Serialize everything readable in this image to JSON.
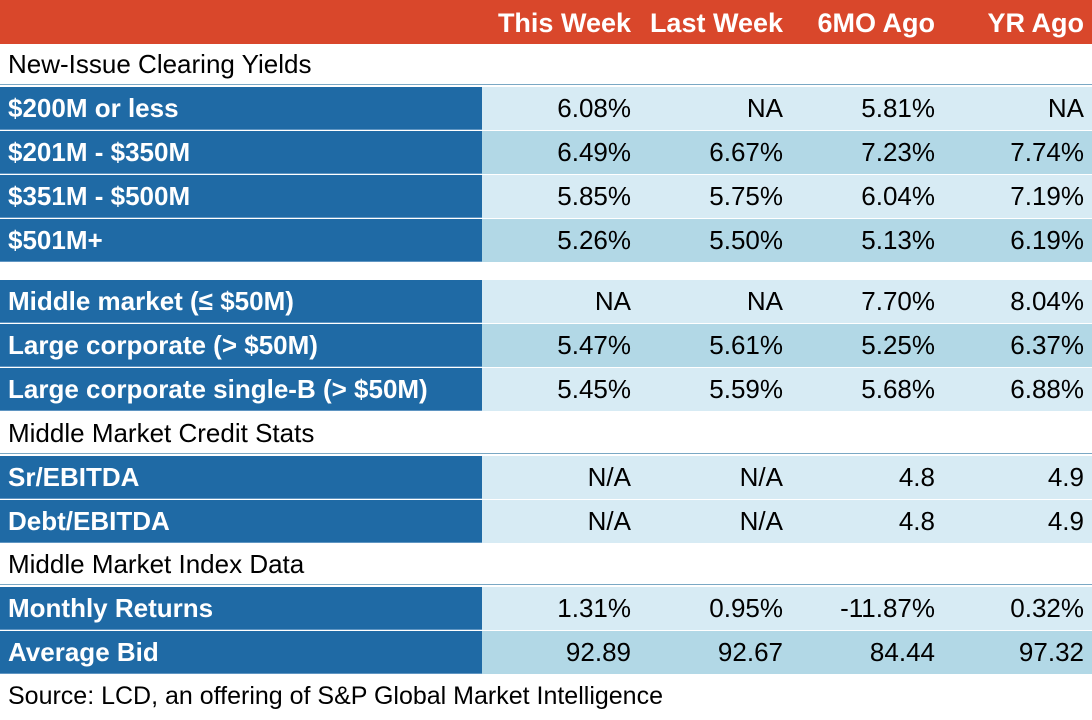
{
  "header": {
    "columns": [
      "This Week",
      "Last Week",
      "6MO Ago",
      "YR Ago"
    ]
  },
  "sections": [
    {
      "title": "New-Issue Clearing Yields",
      "rows": [
        {
          "label": "$200M or less",
          "values": [
            "6.08%",
            "NA",
            "5.81%",
            "NA"
          ]
        },
        {
          "label": "$201M - $350M",
          "values": [
            "6.49%",
            "6.67%",
            "7.23%",
            "7.74%"
          ]
        },
        {
          "label": "$351M - $500M",
          "values": [
            "5.85%",
            "5.75%",
            "6.04%",
            "7.19%"
          ]
        },
        {
          "label": "$501M+",
          "values": [
            "5.26%",
            "5.50%",
            "5.13%",
            "6.19%"
          ]
        }
      ]
    },
    {
      "title": "",
      "rows": [
        {
          "label": "Middle market (≤ $50M)",
          "values": [
            "NA",
            "NA",
            "7.70%",
            "8.04%"
          ]
        },
        {
          "label": "Large corporate (> $50M)",
          "values": [
            "5.47%",
            "5.61%",
            "5.25%",
            "6.37%"
          ]
        },
        {
          "label": "Large corporate single-B (> $50M)",
          "values": [
            "5.45%",
            "5.59%",
            "5.68%",
            "6.88%"
          ]
        }
      ]
    },
    {
      "title": "Middle Market Credit Stats",
      "rows": [
        {
          "label": "Sr/EBITDA",
          "values": [
            "N/A",
            "N/A",
            "4.8",
            "4.9"
          ]
        },
        {
          "label": "Debt/EBITDA",
          "values": [
            "N/A",
            "N/A",
            "4.8",
            "4.9"
          ]
        }
      ]
    },
    {
      "title": "Middle Market Index Data",
      "rows": [
        {
          "label": "Monthly Returns",
          "values": [
            "1.31%",
            "0.95%",
            "-11.87%",
            "0.32%"
          ]
        },
        {
          "label": "Average Bid",
          "values": [
            "92.89",
            "92.67",
            "84.44",
            "97.32"
          ]
        }
      ]
    }
  ],
  "footer": {
    "source": "Source: LCD, an offering of S&P Global Market Intelligence"
  },
  "colors": {
    "header_bg": "#d9472b",
    "label_bg": "#1f6aa5",
    "row_light": "#d7ebf4",
    "row_dark": "#b2d8e6"
  }
}
